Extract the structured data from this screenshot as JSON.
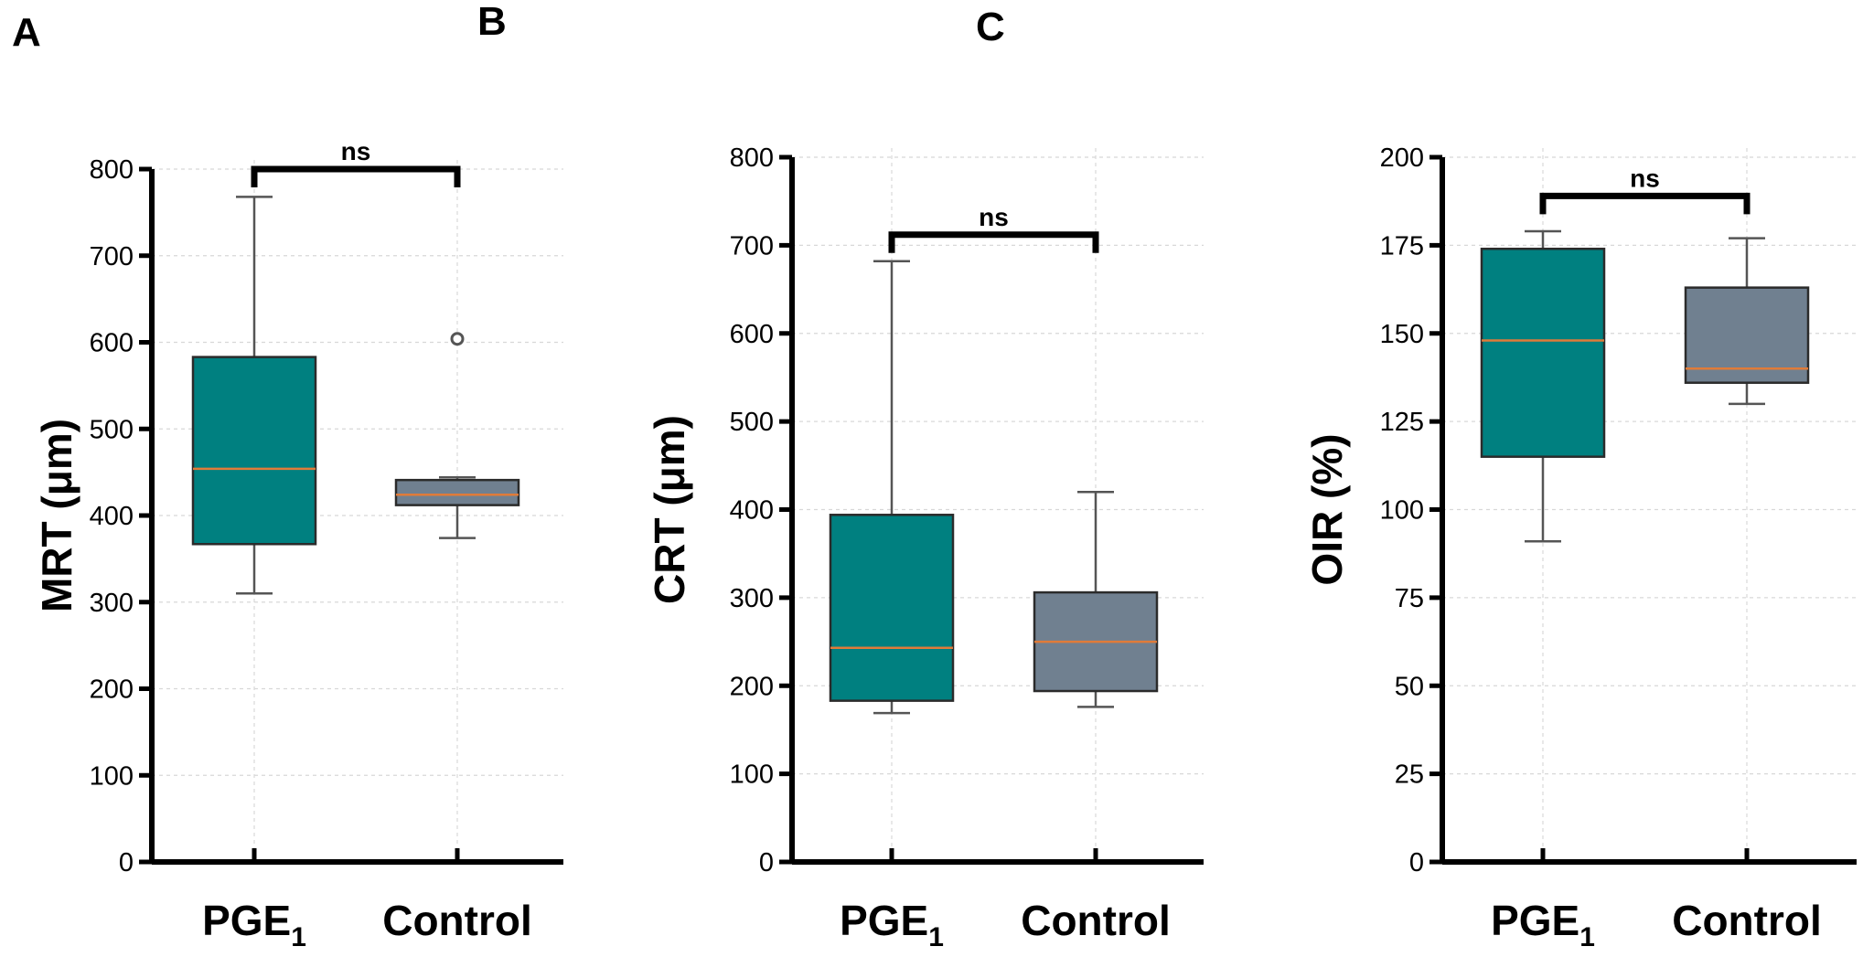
{
  "chart_data": [
    {
      "panel": "A",
      "type": "box",
      "ylabel": "MRT (μm)",
      "xlabel": "",
      "ylim": [
        0,
        800
      ],
      "yticks": [
        0,
        100,
        200,
        300,
        400,
        500,
        600,
        700,
        800
      ],
      "grid": true,
      "categories": [
        {
          "name": "PGE",
          "subscript": "1"
        },
        {
          "name": "Control",
          "subscript": ""
        }
      ],
      "boxes": [
        {
          "min": 310,
          "q1": 367,
          "median": 454,
          "q3": 583,
          "max": 768,
          "color": "#008080",
          "fliers": []
        },
        {
          "min": 374,
          "q1": 412,
          "median": 424,
          "q3": 441,
          "max": 444,
          "color": "#708090",
          "fliers": [
            604
          ]
        }
      ],
      "significance": {
        "label": "ns",
        "y": 800
      }
    },
    {
      "panel": "B",
      "type": "box",
      "ylabel": "CRT (μm)",
      "xlabel": "",
      "ylim": [
        0,
        800
      ],
      "yticks": [
        0,
        100,
        200,
        300,
        400,
        500,
        600,
        700,
        800
      ],
      "grid": true,
      "categories": [
        {
          "name": "PGE",
          "subscript": "1"
        },
        {
          "name": "Control",
          "subscript": ""
        }
      ],
      "boxes": [
        {
          "min": 169,
          "q1": 183,
          "median": 243,
          "q3": 394,
          "max": 682,
          "color": "#008080",
          "fliers": []
        },
        {
          "min": 176,
          "q1": 194,
          "median": 250,
          "q3": 306,
          "max": 420,
          "color": "#708090",
          "fliers": []
        }
      ],
      "significance": {
        "label": "ns",
        "y": 712
      }
    },
    {
      "panel": "C",
      "type": "box",
      "ylabel": "OIR (%)",
      "xlabel": "",
      "ylim": [
        0,
        200
      ],
      "yticks": [
        0,
        25,
        50,
        75,
        100,
        125,
        150,
        175,
        200
      ],
      "grid": true,
      "categories": [
        {
          "name": "PGE",
          "subscript": "1"
        },
        {
          "name": "Control",
          "subscript": ""
        }
      ],
      "boxes": [
        {
          "min": 91,
          "q1": 115,
          "median": 148,
          "q3": 174,
          "max": 179,
          "color": "#008080",
          "fliers": []
        },
        {
          "min": 130,
          "q1": 136,
          "median": 140,
          "q3": 163,
          "max": 177,
          "color": "#708090",
          "fliers": []
        }
      ],
      "significance": {
        "label": "ns",
        "y": 189
      }
    }
  ],
  "style": {
    "median_color": "#e07b39",
    "axis_color": "#000000"
  }
}
